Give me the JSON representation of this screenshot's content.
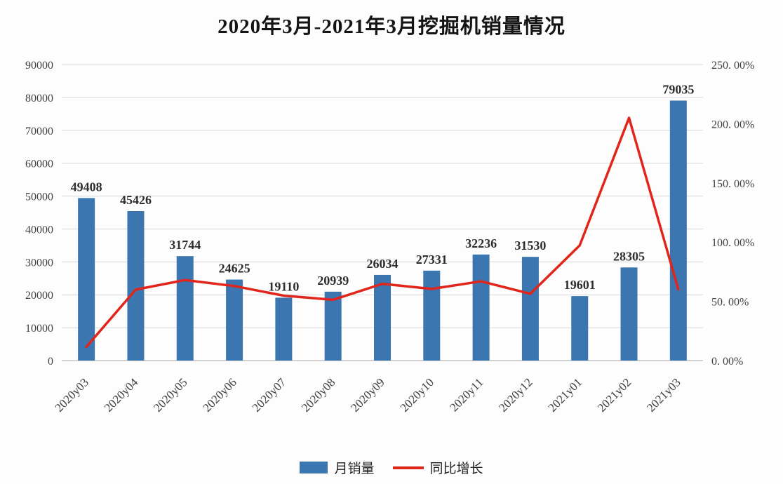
{
  "chart": {
    "title": "2020年3月-2021年3月挖掘机销量情况",
    "legend": {
      "bars": "月销量",
      "line": "同比增长"
    }
  },
  "chart_data": {
    "type": "bar",
    "subtype": "bar+line-dual-axis",
    "title": "2020年3月-2021年3月挖掘机销量情况",
    "categories": [
      "2020y03",
      "2020y04",
      "2020y05",
      "2020y06",
      "2020y07",
      "2020y08",
      "2020y09",
      "2020y10",
      "2020y11",
      "2020y12",
      "2021y01",
      "2021y02",
      "2021y03"
    ],
    "series": [
      {
        "name": "月销量",
        "type": "bar",
        "axis": "left",
        "color": "#3b76b0",
        "values": [
          49408,
          45426,
          31744,
          24625,
          19110,
          20939,
          26034,
          27331,
          32236,
          31530,
          19601,
          28305,
          79035
        ]
      },
      {
        "name": "同比增长",
        "type": "line",
        "axis": "right",
        "color": "#e1251b",
        "values_percent": [
          11.6,
          59.9,
          68.0,
          62.9,
          54.8,
          51.3,
          64.8,
          60.5,
          66.9,
          56.4,
          97.2,
          205.0,
          60.0
        ]
      }
    ],
    "left_axis": {
      "min": 0,
      "max": 90000,
      "step": 10000,
      "tick_labels": [
        "0",
        "10000",
        "20000",
        "30000",
        "40000",
        "50000",
        "60000",
        "70000",
        "80000",
        "90000"
      ]
    },
    "right_axis": {
      "min": 0,
      "max": 250,
      "step": 50,
      "tick_labels": [
        "0. 00%",
        "50. 00%",
        "100. 00%",
        "150. 00%",
        "200. 00%",
        "250. 00%"
      ]
    },
    "grid": true,
    "legend_position": "bottom",
    "bar_label_color": "#2e2e2e",
    "tick_label_color": "#3f3f3f",
    "grid_color": "#d9d9d9",
    "axis_line_color": "#a6a6a6"
  }
}
